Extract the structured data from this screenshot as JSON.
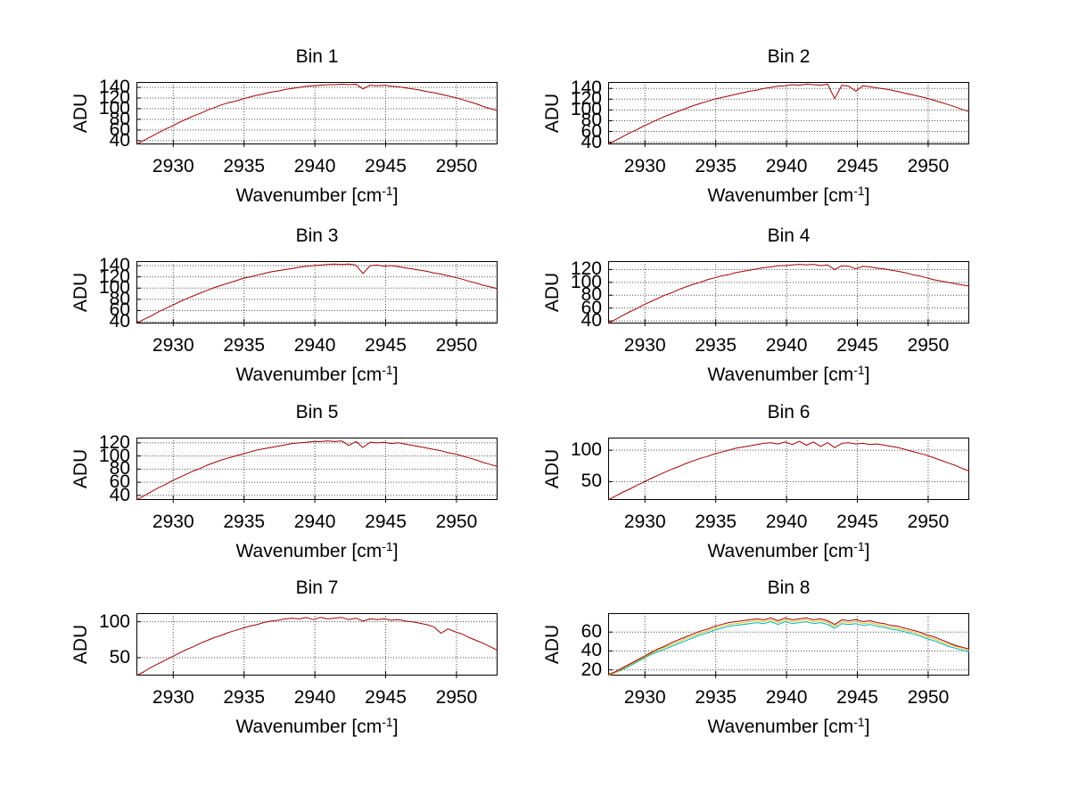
{
  "figure": {
    "background": "#ffffff"
  },
  "chart_data": {
    "type": "line",
    "description": "8 stacked spectra subplots, ADU vs wavenumber, MATLAB-style with dotted grid",
    "ylabel": "ADU",
    "xlabel_parts": {
      "main": "Wavenumber [cm",
      "sup": "-1",
      "close": "]"
    },
    "xlim": [
      2927.4,
      2952.9
    ],
    "x_start": 2927.4,
    "x_step": 0.5,
    "xticks": [
      2930,
      2935,
      2940,
      2945,
      2950
    ],
    "grid": "dotted",
    "legend": "none",
    "colors": {
      "line_red": "#a00000",
      "line_yellow": "#d8c020",
      "line_cyan": "#00b2b2",
      "grid": "#4a4a4a",
      "axis": "#000000",
      "text": "#000000",
      "background": "#ffffff"
    },
    "bins": [
      {
        "title": "Bin 1",
        "ylim": [
          33,
          150
        ],
        "yticks": [
          40,
          60,
          80,
          100,
          120,
          140
        ],
        "series": [
          {
            "name": "spectrum-red",
            "color_key": "line_red",
            "values": [
              33,
              40,
              47,
              54,
              61,
              67,
              74,
              80,
              86,
              91,
              97,
              102,
              107,
              111,
              114,
              118,
              122,
              125,
              128,
              131,
              133,
              136,
              138,
              140,
              142,
              143,
              144,
              145,
              145,
              146,
              145,
              146,
              137,
              144,
              143,
              144,
              142,
              141,
              139,
              137,
              135,
              132,
              130,
              127,
              124,
              121,
              117,
              113,
              109,
              104,
              100,
              96
            ]
          }
        ]
      },
      {
        "title": "Bin 2",
        "ylim": [
          36,
          152
        ],
        "yticks": [
          40,
          60,
          80,
          100,
          120,
          140
        ],
        "series": [
          {
            "name": "spectrum-red",
            "color_key": "line_red",
            "values": [
              36,
              43,
              50,
              57,
              63,
              70,
              76,
              82,
              88,
              93,
              98,
              103,
              108,
              112,
              116,
              120,
              123,
              126,
              129,
              132,
              135,
              137,
              140,
              142,
              144,
              145,
              147,
              146,
              148,
              147,
              146,
              148,
              121,
              146,
              144,
              135,
              145,
              143,
              141,
              139,
              137,
              134,
              131,
              128,
              125,
              122,
              118,
              114,
              110,
              106,
              101,
              97
            ]
          }
        ]
      },
      {
        "title": "Bin 3",
        "ylim": [
          37,
          148
        ],
        "yticks": [
          40,
          60,
          80,
          100,
          120,
          140
        ],
        "series": [
          {
            "name": "spectrum-red",
            "color_key": "line_red",
            "values": [
              37,
              44,
              50,
              57,
              63,
              69,
              75,
              81,
              86,
              91,
              96,
              101,
              105,
              109,
              113,
              117,
              120,
              123,
              126,
              129,
              131,
              133,
              135,
              137,
              139,
              140,
              141,
              142,
              143,
              142,
              143,
              141,
              126,
              140,
              141,
              139,
              140,
              138,
              136,
              134,
              132,
              130,
              127,
              125,
              122,
              119,
              116,
              112,
              109,
              105,
              102,
              99
            ]
          }
        ]
      },
      {
        "title": "Bin 4",
        "ylim": [
          36,
          133
        ],
        "yticks": [
          40,
          60,
          80,
          100,
          120
        ],
        "series": [
          {
            "name": "spectrum-red",
            "color_key": "line_red",
            "values": [
              36,
              42,
              48,
              54,
              59,
              65,
              70,
              75,
              80,
              84,
              89,
              93,
              97,
              100,
              104,
              107,
              110,
              112,
              115,
              117,
              119,
              121,
              123,
              124,
              126,
              126,
              127,
              128,
              127,
              128,
              126,
              127,
              120,
              126,
              125,
              121,
              125,
              124,
              122,
              121,
              119,
              117,
              115,
              112,
              110,
              107,
              104,
              102,
              100,
              98,
              96,
              94
            ]
          }
        ]
      },
      {
        "title": "Bin 5",
        "ylim": [
          33,
          128
        ],
        "yticks": [
          40,
          60,
          80,
          100,
          120
        ],
        "series": [
          {
            "name": "spectrum-red",
            "color_key": "line_red",
            "values": [
              33,
              39,
              45,
              51,
              56,
              62,
              67,
              72,
              77,
              81,
              86,
              90,
              94,
              97,
              100,
              103,
              106,
              109,
              111,
              113,
              115,
              117,
              119,
              120,
              121,
              122,
              122,
              123,
              122,
              123,
              116,
              122,
              113,
              121,
              120,
              121,
              119,
              120,
              118,
              116,
              114,
              112,
              110,
              108,
              105,
              103,
              100,
              97,
              94,
              90,
              87,
              84
            ]
          }
        ]
      },
      {
        "title": "Bin 6",
        "ylim": [
          21,
          120
        ],
        "yticks": [
          50,
          100
        ],
        "series": [
          {
            "name": "spectrum-red",
            "color_key": "line_red",
            "values": [
              21,
              27,
              33,
              38,
              44,
              49,
              55,
              60,
              65,
              70,
              74,
              79,
              83,
              87,
              90,
              94,
              97,
              100,
              103,
              105,
              107,
              109,
              111,
              112,
              110,
              113,
              109,
              114,
              108,
              113,
              106,
              112,
              104,
              111,
              112,
              110,
              111,
              109,
              110,
              108,
              106,
              104,
              101,
              98,
              95,
              92,
              88,
              84,
              80,
              76,
              71,
              67
            ]
          }
        ]
      },
      {
        "title": "Bin 7",
        "ylim": [
          25,
          112
        ],
        "yticks": [
          50,
          100
        ],
        "series": [
          {
            "name": "spectrum-red",
            "color_key": "line_red",
            "values": [
              25,
              30,
              36,
              41,
              46,
              51,
              56,
              61,
              65,
              70,
              74,
              78,
              81,
              85,
              88,
              91,
              94,
              96,
              99,
              101,
              102,
              104,
              105,
              104,
              106,
              103,
              106,
              104,
              105,
              106,
              103,
              105,
              101,
              104,
              103,
              104,
              102,
              103,
              101,
              100,
              98,
              96,
              93,
              84,
              90,
              86,
              83,
              78,
              74,
              70,
              65,
              60
            ]
          }
        ]
      },
      {
        "title": "Bin 8",
        "ylim": [
          14,
          80
        ],
        "yticks": [
          20,
          40,
          60
        ],
        "series": [
          {
            "name": "spectrum-cyan",
            "color_key": "line_cyan",
            "values": [
              14,
              17,
              20,
              24,
              28,
              32,
              36,
              39,
              42,
              45,
              48,
              51,
              54,
              57,
              59,
              62,
              64,
              66,
              67,
              68,
              69,
              70,
              69,
              71,
              68,
              71,
              69,
              70,
              71,
              69,
              70,
              68,
              64,
              69,
              68,
              69,
              67,
              68,
              66,
              65,
              63,
              62,
              60,
              58,
              56,
              53,
              51,
              48,
              45,
              43,
              41,
              39
            ]
          },
          {
            "name": "spectrum-yellow",
            "color_key": "line_yellow",
            "values": [
              14,
              17,
              21,
              25,
              29,
              33,
              37,
              41,
              44,
              47,
              50,
              53,
              56,
              59,
              61,
              64,
              66,
              68,
              69,
              70,
              71,
              72,
              71,
              73,
              70,
              73,
              71,
              72,
              73,
              71,
              72,
              70,
              66,
              71,
              70,
              71,
              69,
              70,
              68,
              67,
              65,
              64,
              62,
              60,
              58,
              55,
              53,
              50,
              47,
              45,
              43,
              41
            ]
          },
          {
            "name": "spectrum-red",
            "color_key": "line_red",
            "values": [
              15,
              18,
              22,
              26,
              30,
              34,
              38,
              42,
              45,
              49,
              52,
              55,
              58,
              61,
              63,
              66,
              68,
              70,
              71,
              72,
              73,
              74,
              73,
              75,
              72,
              75,
              73,
              74,
              75,
              73,
              74,
              72,
              68,
              73,
              72,
              73,
              71,
              72,
              70,
              69,
              67,
              66,
              64,
              62,
              60,
              57,
              55,
              52,
              49,
              46,
              44,
              42
            ]
          }
        ]
      }
    ]
  }
}
